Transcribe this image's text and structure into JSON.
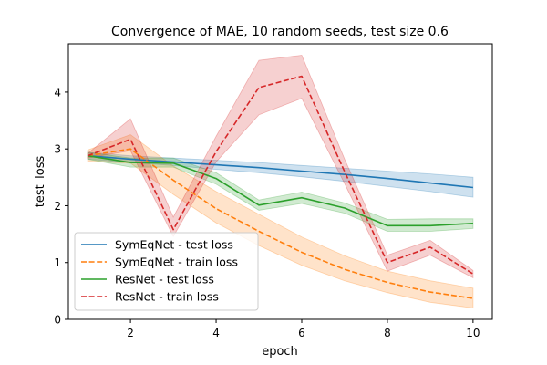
{
  "chart_data": {
    "type": "line",
    "title": "Convergence of MAE, 10 random seeds, test size 0.6",
    "xlabel": "epoch",
    "ylabel": "test_loss",
    "xlim": [
      0.55,
      10.45
    ],
    "ylim": [
      0,
      4.85
    ],
    "xticks": [
      2,
      4,
      6,
      8,
      10
    ],
    "xtick_labels": [
      "2",
      "4",
      "6",
      "8",
      "10"
    ],
    "yticks": [
      0,
      1,
      2,
      3,
      4
    ],
    "ytick_labels": [
      "0",
      "1",
      "2",
      "3",
      "4"
    ],
    "grid": false,
    "legend_position": "lower-left",
    "x": [
      1,
      2,
      3,
      4,
      5,
      6,
      7,
      8,
      9,
      10
    ],
    "series": [
      {
        "name": "SymEqNet - test loss",
        "color": "#1f77b4",
        "dash": "solid",
        "values": [
          2.88,
          2.82,
          2.77,
          2.72,
          2.67,
          2.61,
          2.55,
          2.48,
          2.4,
          2.32
        ],
        "lower": [
          2.82,
          2.76,
          2.71,
          2.64,
          2.58,
          2.51,
          2.43,
          2.34,
          2.25,
          2.15
        ],
        "upper": [
          2.94,
          2.88,
          2.84,
          2.8,
          2.76,
          2.71,
          2.66,
          2.61,
          2.56,
          2.5
        ]
      },
      {
        "name": "SymEqNet - train loss",
        "color": "#ff7f0e",
        "dash": "dashed",
        "values": [
          2.88,
          3.0,
          2.45,
          1.95,
          1.55,
          1.18,
          0.88,
          0.65,
          0.48,
          0.37
        ],
        "lower": [
          2.78,
          2.75,
          2.2,
          1.7,
          1.3,
          0.95,
          0.68,
          0.47,
          0.3,
          0.2
        ],
        "upper": [
          2.98,
          3.25,
          2.7,
          2.25,
          1.85,
          1.45,
          1.12,
          0.85,
          0.68,
          0.55
        ]
      },
      {
        "name": "ResNet - test loss",
        "color": "#2ca02c",
        "dash": "solid",
        "values": [
          2.88,
          2.76,
          2.75,
          2.48,
          2.01,
          2.14,
          1.96,
          1.65,
          1.65,
          1.69
        ],
        "lower": [
          2.82,
          2.68,
          2.68,
          2.38,
          1.92,
          2.04,
          1.87,
          1.55,
          1.55,
          1.6
        ],
        "upper": [
          2.94,
          2.84,
          2.84,
          2.58,
          2.1,
          2.24,
          2.05,
          1.76,
          1.77,
          1.77
        ]
      },
      {
        "name": "ResNet - train loss",
        "color": "#d62728",
        "dash": "dashed",
        "values": [
          2.88,
          3.17,
          1.58,
          2.95,
          4.08,
          4.28,
          2.6,
          1.0,
          1.27,
          0.8
        ],
        "lower": [
          2.84,
          2.97,
          1.46,
          2.77,
          3.6,
          3.89,
          2.39,
          0.85,
          1.13,
          0.73
        ],
        "upper": [
          2.92,
          3.53,
          1.8,
          3.22,
          4.56,
          4.65,
          2.82,
          1.13,
          1.39,
          0.86
        ]
      }
    ]
  }
}
